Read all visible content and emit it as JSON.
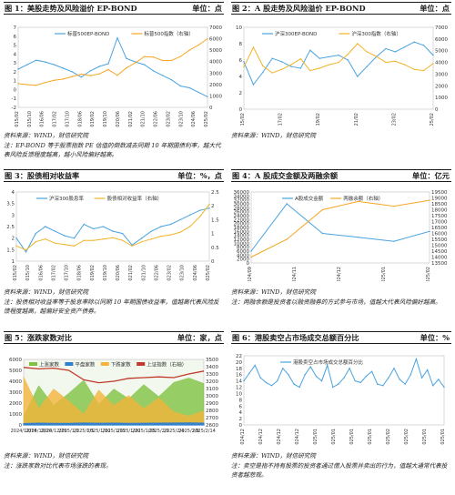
{
  "figures": [
    {
      "title": "图 1：美股走势及风险溢价 EP-BOND",
      "unit": "单位：点",
      "source": "资料来源：WIND，财信研究院",
      "comment": "注：EP-BOND 等于股票指数 PE 估值的倒数减去同期 10 年期国债利率，越大代表风险反馈程度越高，越小风险偏好越高。",
      "colors": {
        "series1": "#4aa3df",
        "series2": "#f5a623"
      }
    },
    {
      "title": "图 2：A 股走势及风险溢价 EP-BOND",
      "unit": "单位：点",
      "source": "资料来源：WIND，财信研究院",
      "comment": "",
      "colors": {
        "series1": "#4aa3df",
        "series2": "#f0b429"
      }
    },
    {
      "title": "图 3：股债相对收益率",
      "unit": "单位：%，点",
      "source": "资料来源：WIND，财信研究院",
      "comment": "注：股债相对收益率等于股息率除以同期 10 年期国债收益率，值越高代表风险反馈程度越高，越偏好安全资产债券。",
      "colors": {
        "series1": "#4aa3df",
        "series2": "#f0b429"
      }
    },
    {
      "title": "图 4：A 股成交金额及两融余额",
      "unit": "单位：亿元",
      "source": "资料来源：WIND，财信研究院",
      "comment": "注：两融余额是投资者以融资融券的方式参与市场，值越大代表风险偏好越高。",
      "colors": {
        "series1": "#4aa3df",
        "series2": "#f5a623"
      }
    },
    {
      "title": "图 5：涨跌家数对比",
      "unit": "单位：家，点",
      "source": "资料来源：WIND，财信研究院",
      "comment": "注：涨跌家数对比代表市场涨跌的表现。",
      "colors": {
        "up": "#7ec242",
        "flat": "#2f7fd0",
        "down": "#f3b43b",
        "index": "#c0392b"
      }
    },
    {
      "title": "图 6：港股卖空占市场成交总额百分比",
      "unit": "单位：%",
      "source": "资料来源：WIND，财信研究院",
      "comment": "注：卖空是指不持有股票的投资者通过借入股票并卖出的行为，值越大通常代表投资者越悲观。",
      "colors": {
        "series1": "#4aa3df"
      }
    }
  ],
  "chart_data": [
    {
      "type": "line",
      "title": "",
      "series": [
        {
          "name": "标普500EP-BOND",
          "axis": "left",
          "x": [
            "2015/02",
            "2015/08",
            "2016/02",
            "2016/08",
            "2017/02",
            "2017/08",
            "2018/02",
            "2018/08",
            "2019/02",
            "2019/08",
            "2020/02",
            "2020/04",
            "2020/08",
            "2021/02",
            "2021/08",
            "2022/02",
            "2022/08",
            "2023/02",
            "2023/08",
            "2024/02",
            "2024/08",
            "2025/02"
          ],
          "values": [
            2.3,
            2.8,
            3.3,
            3.1,
            2.8,
            2.4,
            2.0,
            1.4,
            2.1,
            2.6,
            2.9,
            5.8,
            3.5,
            3.1,
            2.8,
            2.1,
            1.6,
            1.1,
            0.4,
            0.2,
            -0.3,
            -0.8
          ]
        },
        {
          "name": "标普500指数（右轴）",
          "axis": "right",
          "x": [
            "2015/02",
            "2015/08",
            "2016/02",
            "2016/08",
            "2017/02",
            "2017/08",
            "2018/02",
            "2018/08",
            "2019/02",
            "2019/08",
            "2020/02",
            "2020/04",
            "2020/08",
            "2021/02",
            "2021/08",
            "2022/02",
            "2022/08",
            "2023/02",
            "2023/08",
            "2024/02",
            "2024/08",
            "2025/02"
          ],
          "values": [
            2080,
            1990,
            1930,
            2170,
            2360,
            2470,
            2700,
            2900,
            2780,
            2930,
            3300,
            2800,
            3450,
            3900,
            4450,
            4400,
            4100,
            4100,
            4450,
            5000,
            5450,
            6000
          ]
        }
      ],
      "ylim_left": [
        -2,
        7
      ],
      "yticks_left": [
        -2,
        -1,
        0,
        1,
        2,
        3,
        4,
        5,
        6,
        7
      ],
      "ylim_right": [
        0,
        7000
      ],
      "yticks_right": [
        0,
        1000,
        2000,
        3000,
        4000,
        5000,
        6000,
        7000
      ],
      "xticks": [
        "2015/02",
        "2015/10",
        "2016/06",
        "2017/02",
        "2017/10",
        "2018/06",
        "2019/02",
        "2019/10",
        "2020/06",
        "2021/02",
        "2021/10",
        "2022/06",
        "2023/02",
        "2023/10",
        "2024/06",
        "2025/02"
      ],
      "legend": "top-center"
    },
    {
      "type": "line",
      "title": "",
      "series": [
        {
          "name": "沪深300EP-BOND",
          "axis": "left",
          "x": [
            "2015/02",
            "2015/06",
            "2015/12",
            "2016/06",
            "2017/02",
            "2017/08",
            "2018/02",
            "2018/08",
            "2019/02",
            "2019/08",
            "2020/02",
            "2020/08",
            "2021/02",
            "2021/08",
            "2022/02",
            "2022/08",
            "2023/02",
            "2023/08",
            "2024/02",
            "2024/08",
            "2025/02"
          ],
          "values": [
            5.8,
            3.0,
            4.5,
            6.2,
            5.8,
            5.2,
            5.0,
            7.2,
            6.2,
            6.4,
            6.6,
            6.0,
            4.0,
            5.2,
            6.4,
            7.4,
            7.0,
            7.6,
            8.2,
            7.8,
            6.6
          ]
        },
        {
          "name": "沪深300指数（右轴）",
          "axis": "right",
          "x": [
            "2015/02",
            "2015/06",
            "2015/12",
            "2016/06",
            "2017/02",
            "2017/08",
            "2018/02",
            "2018/08",
            "2019/02",
            "2019/08",
            "2020/02",
            "2020/08",
            "2021/02",
            "2021/08",
            "2022/02",
            "2022/08",
            "2023/02",
            "2023/08",
            "2024/02",
            "2024/08",
            "2025/02"
          ],
          "values": [
            3600,
            5300,
            3700,
            3100,
            3400,
            3800,
            4300,
            3300,
            3500,
            3800,
            4000,
            4700,
            5600,
            4900,
            4500,
            4000,
            4100,
            3800,
            3400,
            3300,
            3900
          ]
        }
      ],
      "ylim_left": [
        0,
        10
      ],
      "yticks_left": [
        0,
        2,
        4,
        6,
        8,
        10
      ],
      "ylim_right": [
        0,
        7000
      ],
      "yticks_right": [
        0,
        1000,
        2000,
        3000,
        4000,
        5000,
        6000,
        7000
      ],
      "xticks": [
        "2015/02",
        "2017/02",
        "2019/02",
        "2021/02",
        "2023/02",
        "2025/02"
      ],
      "legend": "top-center"
    },
    {
      "type": "line",
      "title": "",
      "series": [
        {
          "name": "沪深300股息率",
          "axis": "left",
          "x": [
            "2015/02",
            "2015/06",
            "2016/01",
            "2016/06",
            "2017/02",
            "2017/08",
            "2018/02",
            "2018/08",
            "2019/02",
            "2019/08",
            "2020/02",
            "2020/08",
            "2021/02",
            "2021/08",
            "2022/02",
            "2022/08",
            "2023/02",
            "2023/08",
            "2024/02",
            "2024/08",
            "2025/02"
          ],
          "values": [
            2.0,
            1.4,
            2.2,
            2.5,
            2.3,
            2.1,
            2.0,
            2.6,
            2.4,
            2.5,
            2.3,
            2.2,
            1.7,
            2.0,
            2.3,
            2.5,
            2.6,
            2.8,
            3.0,
            3.2,
            3.3
          ]
        },
        {
          "name": "股债相对收益率（右轴）",
          "axis": "right",
          "x": [
            "2015/02",
            "2015/06",
            "2016/01",
            "2016/06",
            "2017/02",
            "2017/08",
            "2018/02",
            "2018/08",
            "2019/02",
            "2019/08",
            "2020/02",
            "2020/08",
            "2021/02",
            "2021/08",
            "2022/02",
            "2022/08",
            "2023/02",
            "2023/08",
            "2024/02",
            "2024/08",
            "2025/02"
          ],
          "values": [
            0.55,
            0.4,
            0.7,
            0.8,
            0.65,
            0.6,
            0.55,
            0.75,
            0.75,
            0.8,
            0.85,
            0.75,
            0.55,
            0.7,
            0.8,
            0.9,
            0.95,
            1.05,
            1.25,
            1.6,
            2.05
          ]
        }
      ],
      "ylim_left": [
        1,
        4
      ],
      "yticks_left": [
        1,
        1.5,
        2,
        2.5,
        3,
        3.5,
        4
      ],
      "ylim_right": [
        0,
        2.5
      ],
      "yticks_right": [
        0,
        0.5,
        1,
        1.5,
        2,
        2.5
      ],
      "xticks": [
        "2015/02",
        "2015/10",
        "2016/06",
        "2017/02",
        "2017/10",
        "2018/06",
        "2019/02",
        "2019/10",
        "2020/06",
        "2021/02",
        "2021/10",
        "2022/06",
        "2023/02",
        "2023/10",
        "2024/06",
        "2025/02"
      ],
      "legend": "top-center"
    },
    {
      "type": "line",
      "title": "",
      "series": [
        {
          "name": "A股成交金额",
          "axis": "left",
          "x": [
            "2024/09",
            "2024/10",
            "2024/11",
            "2024/12",
            "2025/01",
            "2025/02"
          ],
          "values": [
            6000,
            30000,
            15000,
            13000,
            11000,
            16000
          ]
        },
        {
          "name": "两融余额（右轴）",
          "axis": "right",
          "x": [
            "2024/09",
            "2024/10",
            "2024/11",
            "2024/12",
            "2025/01",
            "2025/02"
          ],
          "values": [
            14000,
            15500,
            18000,
            18700,
            18300,
            18800
          ]
        }
      ],
      "ylim_left": [
        0,
        36000
      ],
      "yticks_left": [
        0,
        2000,
        4000,
        6000,
        8000,
        10000,
        12000,
        14000,
        16000,
        18000,
        20000,
        22000,
        24000,
        26000,
        28000,
        30000,
        32000,
        34000,
        36000
      ],
      "ylim_right": [
        13500,
        19500
      ],
      "yticks_right": [
        13500,
        14000,
        14500,
        15000,
        15500,
        16000,
        16500,
        17000,
        17500,
        18000,
        18500,
        19000,
        19500
      ],
      "xticks": [
        "2024/09",
        "2024/11",
        "2024/12",
        "2025/01",
        "2025/02"
      ],
      "legend": "top-center"
    },
    {
      "type": "area",
      "title": "",
      "categories": [
        "2024/12/16",
        "2024/12/20",
        "2024/12/25",
        "2025/1/1",
        "2025/1/5",
        "2025/1/10",
        "2025/1/15",
        "2025/1/20",
        "2025/1/25",
        "2025/2/1",
        "2025/2/4",
        "2025/2/9",
        "2025/2/14"
      ],
      "series": [
        {
          "name": "上涨家数",
          "axis": "left",
          "values": [
            800,
            3600,
            1800,
            2900,
            4100,
            1900,
            3300,
            2400,
            3700,
            2600,
            3900,
            4300,
            3800
          ]
        },
        {
          "name": "平盘家数",
          "axis": "left",
          "values": [
            120,
            160,
            140,
            130,
            170,
            150,
            160,
            140,
            150,
            160,
            170,
            180,
            160
          ]
        },
        {
          "name": "下跌家数",
          "axis": "left",
          "values": [
            4400,
            1500,
            3300,
            2200,
            1000,
            3200,
            1800,
            2700,
            1500,
            2500,
            1200,
            800,
            1300
          ]
        },
        {
          "name": "上证指数（右轴）",
          "axis": "right",
          "values": [
            3390,
            3370,
            3380,
            3350,
            3220,
            3180,
            3200,
            3240,
            3250,
            3260,
            3250,
            3300,
            3340
          ]
        }
      ],
      "ylim_left": [
        0,
        6000
      ],
      "yticks_left": [
        0,
        1000,
        2000,
        3000,
        4000,
        5000,
        6000
      ],
      "ylim_right": [
        2600,
        3500
      ],
      "yticks_right": [
        2600,
        2700,
        2800,
        2900,
        3000,
        3100,
        3200,
        3300,
        3400,
        3500
      ],
      "legend": "top-center"
    },
    {
      "type": "line",
      "title": "",
      "series": [
        {
          "name": "港股卖空占市场成交总额百分比",
          "axis": "left",
          "x": [
            "2024/12/16",
            "2024/12/17",
            "2024/12/18",
            "2024/12/19",
            "2024/12/20",
            "2024/12/23",
            "2024/12/24",
            "2024/12/27",
            "2024/12/30",
            "2024/12/31",
            "2025/1/2",
            "2025/1/3",
            "2025/1/6",
            "2025/1/7",
            "2025/1/8",
            "2025/1/9",
            "2025/1/10",
            "2025/1/13",
            "2025/1/14",
            "2025/1/15",
            "2025/1/16",
            "2025/1/17",
            "2025/1/20",
            "2025/1/21",
            "2025/1/22",
            "2025/1/23",
            "2025/1/24",
            "2025/2/3",
            "2025/2/4",
            "2025/2/5",
            "2025/2/6",
            "2025/2/7",
            "2025/2/10",
            "2025/2/11",
            "2025/2/12",
            "2025/2/13",
            "2025/2/14"
          ],
          "values": [
            14,
            16.5,
            19,
            15,
            13.5,
            12.5,
            14,
            18,
            16,
            13,
            12,
            16,
            18.5,
            15.5,
            14,
            19,
            12,
            13,
            15,
            18,
            14,
            13.5,
            15.5,
            17,
            13,
            12.5,
            15,
            18,
            14.5,
            13,
            16,
            21,
            15,
            17.5,
            12.5,
            14.5,
            12
          ]
        }
      ],
      "ylim_left": [
        0,
        22
      ],
      "yticks_left": [
        0,
        2,
        4,
        6,
        8,
        10,
        12,
        14,
        16,
        18,
        20,
        22
      ],
      "xticks": [
        "2024/12",
        "2024/12",
        "2024/12",
        "2024/12",
        "2025/01",
        "2025/01",
        "2025/01",
        "2025/01",
        "2025/02",
        "2025/02",
        "2025/01",
        "2025/01"
      ],
      "legend": "top-center"
    }
  ]
}
